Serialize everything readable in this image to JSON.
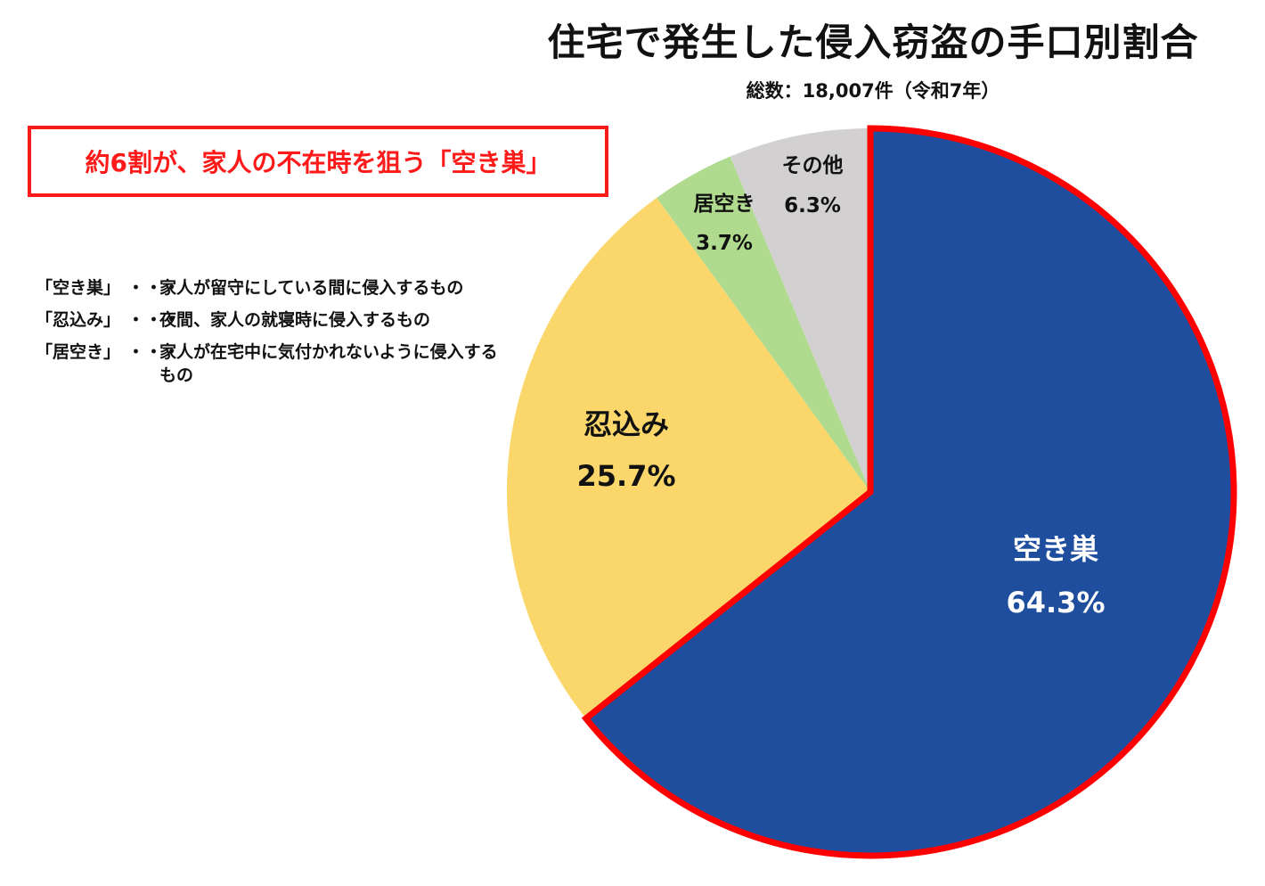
{
  "title": "住宅で発生した侵入窃盗の手口別割合",
  "subtitle": "総数：18,007件（令和7年）",
  "callout": "約6割が、家人の不在時を狙う「空き巣」",
  "definitions": [
    {
      "term": "「空き巣」",
      "sep": "・・・",
      "text": "家人が留守にしている間に侵入するもの"
    },
    {
      "term": "「忍込み」",
      "sep": "・・・",
      "text": "夜間、家人の就寝時に侵入するもの"
    },
    {
      "term": "「居空き」",
      "sep": "・・・",
      "text": "家人が在宅中に気付かれないように侵入するもの"
    }
  ],
  "chart_data": {
    "type": "pie",
    "categories": [
      "空き巣",
      "忍込み",
      "居空き",
      "その他"
    ],
    "values": [
      64.3,
      25.7,
      3.7,
      6.3
    ],
    "value_labels": [
      "64.3%",
      "25.7%",
      "3.7%",
      "6.3%"
    ],
    "colors": [
      "#1f4e9e",
      "#fbd66b",
      "#b0db8f",
      "#d2d0d0"
    ],
    "label_colors": [
      "#ffffff",
      "#111111",
      "#111111",
      "#111111"
    ],
    "highlight": {
      "category": "空き巣",
      "color": "#ff0000"
    },
    "start": "12 o'clock",
    "direction": "clockwise"
  }
}
